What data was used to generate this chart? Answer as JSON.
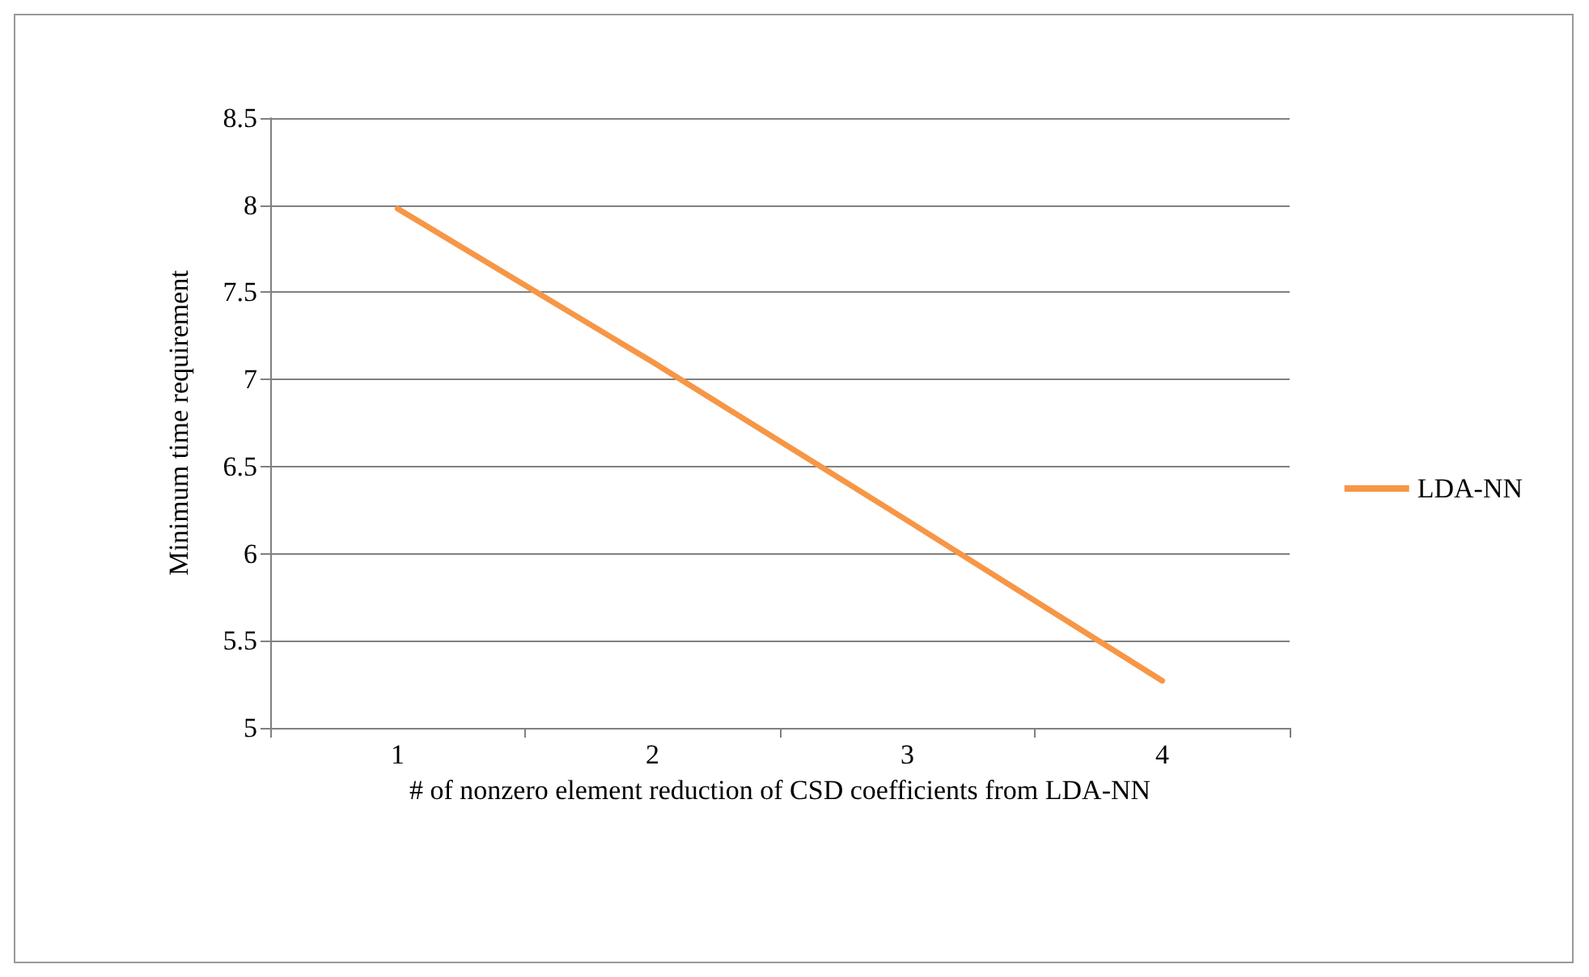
{
  "chart_data": {
    "type": "line",
    "xlabel": "# of nonzero element reduction of CSD coefficients from LDA-NN",
    "ylabel": "Minimum time requirement",
    "categories": [
      "1",
      "2",
      "3",
      "4"
    ],
    "series": [
      {
        "name": "LDA-NN",
        "color": "#f79646",
        "values": [
          7.98,
          7.1,
          6.19,
          5.27
        ]
      }
    ],
    "ylim": [
      5,
      8.5
    ],
    "yticks": [
      5,
      5.5,
      6,
      6.5,
      7,
      7.5,
      8,
      8.5
    ],
    "grid": "y",
    "legend": "right",
    "marker": "none",
    "line_style": "solid"
  }
}
